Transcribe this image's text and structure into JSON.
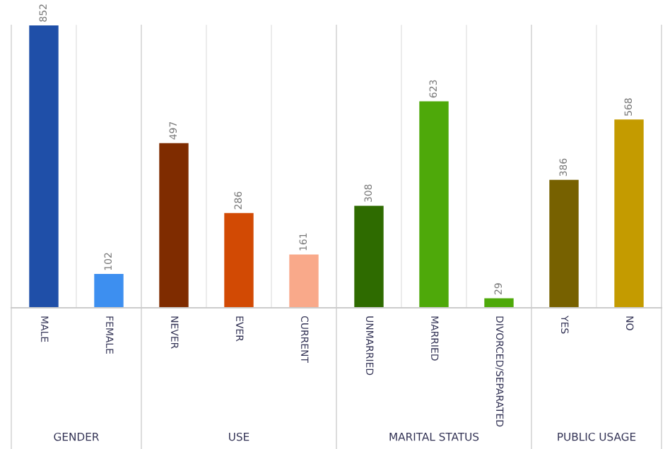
{
  "chart_data": [
    {
      "type": "bar",
      "xlabel": "GENDER",
      "categories": [
        "MALE",
        "FEMALE"
      ],
      "values": [
        852,
        102
      ],
      "colors": [
        "#1f4fa8",
        "#3d8ff0"
      ],
      "data_labels": true
    },
    {
      "type": "bar",
      "xlabel": "USE",
      "categories": [
        "NEVER",
        "EVER",
        "CURRENT"
      ],
      "values": [
        497,
        286,
        161
      ],
      "colors": [
        "#7f2c00",
        "#d24a04",
        "#f9a98a"
      ],
      "data_labels": true
    },
    {
      "type": "bar",
      "xlabel": "MARITAL STATUS",
      "categories": [
        "UNMARRIED",
        "MARRIED",
        "DIVORCED/SEPARATED"
      ],
      "values": [
        308,
        623,
        29
      ],
      "colors": [
        "#2e6b00",
        "#4ea90a",
        "#4ea90a"
      ],
      "data_labels": true
    },
    {
      "type": "bar",
      "xlabel": "PUBLIC USAGE",
      "categories": [
        "YES",
        "NO"
      ],
      "values": [
        386,
        568
      ],
      "colors": [
        "#776100",
        "#c49b00"
      ],
      "data_labels": true
    }
  ]
}
